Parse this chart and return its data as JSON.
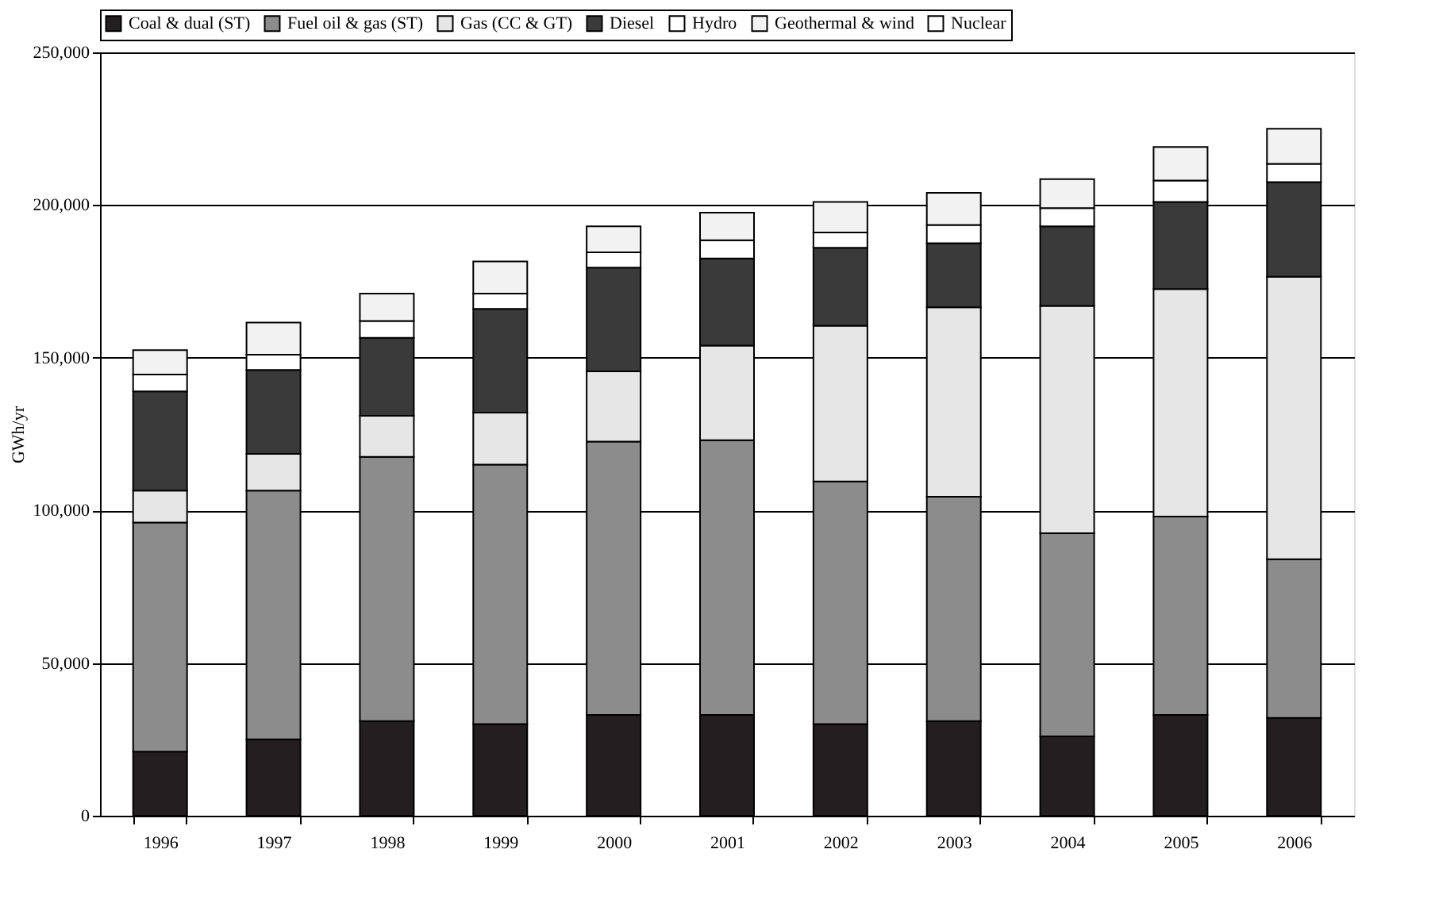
{
  "chart_data": {
    "type": "bar",
    "stacked": true,
    "ylabel": "GWh/yr",
    "categories": [
      "1996",
      "1997",
      "1998",
      "1999",
      "2000",
      "2001",
      "2002",
      "2003",
      "2004",
      "2005",
      "2006"
    ],
    "series": [
      {
        "name": "Coal & dual (ST)",
        "color": "#231f20",
        "values": [
          21000,
          25000,
          31000,
          30000,
          33000,
          33000,
          30000,
          31000,
          26000,
          33000,
          32000
        ]
      },
      {
        "name": "Fuel oil & gas (ST)",
        "color": "#8c8c8c",
        "values": [
          75000,
          81500,
          86500,
          85000,
          89500,
          90000,
          79500,
          73500,
          66500,
          65000,
          52000
        ]
      },
      {
        "name": "Gas (CC & GT)",
        "color": "#e6e6e6",
        "values": [
          10500,
          12000,
          13500,
          17000,
          23000,
          31000,
          51000,
          62000,
          74500,
          74500,
          92500
        ]
      },
      {
        "name": "Diesel",
        "color": "#3a3a3a",
        "values": [
          32500,
          27500,
          25500,
          34000,
          34000,
          28500,
          25500,
          21000,
          26000,
          28500,
          31000
        ]
      },
      {
        "name": "Hydro",
        "color": "#ffffff",
        "values": [
          5500,
          5000,
          5500,
          5000,
          5000,
          6000,
          5000,
          6000,
          6000,
          7000,
          6000
        ]
      },
      {
        "name": "Geothermal & wind",
        "color": "#f2f2f2",
        "values": [
          8000,
          10500,
          9000,
          10500,
          8500,
          9000,
          10000,
          10500,
          9500,
          11000,
          11500
        ]
      },
      {
        "name": "Nuclear",
        "color": "#ffffff",
        "values": [
          null,
          null,
          null,
          null,
          null,
          null,
          null,
          null,
          null,
          null,
          null
        ]
      }
    ],
    "ylim": [
      0,
      250000
    ],
    "yticks": [
      0,
      {
        "value": 50000,
        "label": "50,000"
      },
      {
        "value": 100000,
        "label": "100,000"
      },
      {
        "value": 150000,
        "label": "150,000"
      },
      {
        "value": 200000,
        "label": "200,000"
      },
      {
        "value": 250000,
        "label": "250,000"
      }
    ],
    "grid": "y",
    "legend": "top"
  }
}
